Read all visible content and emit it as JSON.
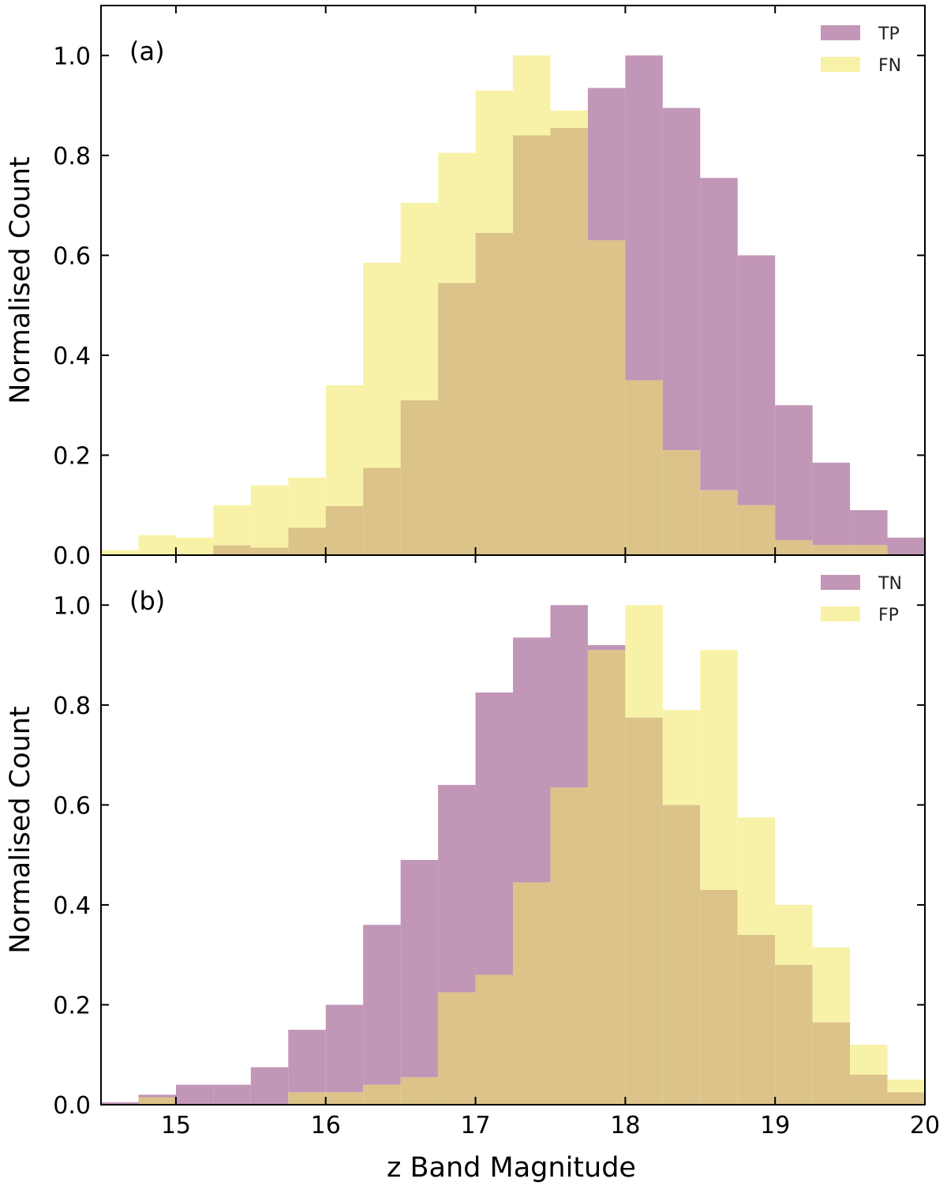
{
  "figure": {
    "xlabel": "z Band Magnitude",
    "colors": {
      "purple": "#c296b6",
      "yellow": "#f8f2a8",
      "overlap": "#dcc389",
      "axis": "#000000"
    }
  },
  "chart_data": [
    {
      "type": "bar",
      "panel_label": "(a)",
      "ylabel": "Normalised Count",
      "xlim": [
        14.5,
        20
      ],
      "ylim": [
        0,
        1.1
      ],
      "xticks": [
        15,
        16,
        17,
        18,
        19,
        20
      ],
      "yticks": [
        0.0,
        0.2,
        0.4,
        0.6,
        0.8,
        1.0
      ],
      "bin_edges": [
        14.5,
        14.75,
        15.0,
        15.25,
        15.5,
        15.75,
        16.0,
        16.25,
        16.5,
        16.75,
        17.0,
        17.25,
        17.5,
        17.75,
        18.0,
        18.25,
        18.5,
        18.75,
        19.0,
        19.25,
        19.5,
        19.75,
        20.0
      ],
      "legend_position": "top-right",
      "series": [
        {
          "name": "TP",
          "color": "#c296b6",
          "values": [
            0.0,
            0.0,
            0.0,
            0.02,
            0.015,
            0.055,
            0.098,
            0.175,
            0.31,
            0.545,
            0.645,
            0.84,
            0.855,
            0.935,
            1.0,
            0.895,
            0.755,
            0.6,
            0.3,
            0.185,
            0.09,
            0.035
          ]
        },
        {
          "name": "FN",
          "color": "#f8f2a8",
          "values": [
            0.01,
            0.04,
            0.035,
            0.1,
            0.14,
            0.155,
            0.34,
            0.585,
            0.705,
            0.805,
            0.93,
            1.0,
            0.89,
            0.63,
            0.35,
            0.21,
            0.13,
            0.1,
            0.03,
            0.02,
            0.02,
            0.0
          ]
        }
      ]
    },
    {
      "type": "bar",
      "panel_label": "(b)",
      "ylabel": "Normalised Count",
      "xlabel": "z Band Magnitude",
      "xlim": [
        14.5,
        20
      ],
      "ylim": [
        0,
        1.1
      ],
      "xticks": [
        15,
        16,
        17,
        18,
        19,
        20
      ],
      "yticks": [
        0.0,
        0.2,
        0.4,
        0.6,
        0.8,
        1.0
      ],
      "bin_edges": [
        14.5,
        14.75,
        15.0,
        15.25,
        15.5,
        15.75,
        16.0,
        16.25,
        16.5,
        16.75,
        17.0,
        17.25,
        17.5,
        17.75,
        18.0,
        18.25,
        18.5,
        18.75,
        19.0,
        19.25,
        19.5,
        19.75,
        20.0
      ],
      "legend_position": "top-right",
      "series": [
        {
          "name": "TN",
          "color": "#c296b6",
          "values": [
            0.005,
            0.02,
            0.04,
            0.04,
            0.075,
            0.15,
            0.2,
            0.36,
            0.49,
            0.64,
            0.825,
            0.935,
            1.0,
            0.92,
            0.775,
            0.6,
            0.43,
            0.34,
            0.28,
            0.165,
            0.06,
            0.025
          ]
        },
        {
          "name": "FP",
          "color": "#f8f2a8",
          "values": [
            0.0,
            0.015,
            0.0,
            0.0,
            0.0,
            0.025,
            0.025,
            0.04,
            0.055,
            0.225,
            0.26,
            0.445,
            0.635,
            0.91,
            1.0,
            0.79,
            0.91,
            0.575,
            0.4,
            0.315,
            0.12,
            0.05
          ]
        }
      ]
    }
  ]
}
